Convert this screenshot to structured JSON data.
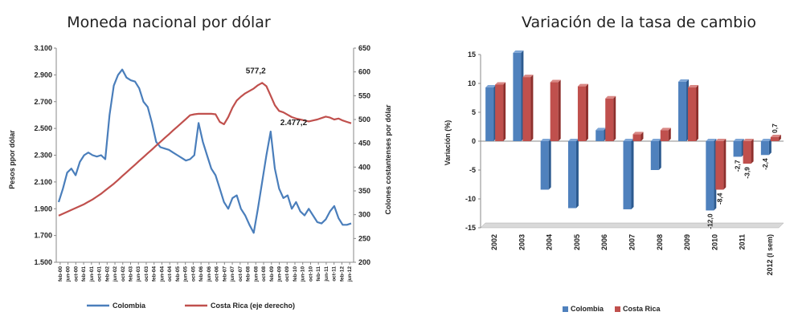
{
  "chart_data": [
    {
      "type": "line",
      "title": "Moneda nacional por dólar",
      "ylabel": "Pesos ppor dólar",
      "y2label": "Colones costantenses por dólar",
      "ylim": [
        1500,
        3100
      ],
      "y2lim": [
        200,
        650
      ],
      "yticks": [
        "1.500",
        "1.700",
        "1.900",
        "2.100",
        "2.300",
        "2.500",
        "2.700",
        "2.900",
        "3.100"
      ],
      "y2ticks": [
        "200",
        "250",
        "300",
        "350",
        "400",
        "450",
        "500",
        "550",
        "600",
        "650"
      ],
      "xticks": [
        "feb-00",
        "jun-00",
        "oct-00",
        "feb-01",
        "jun-01",
        "oct-01",
        "feb-02",
        "jun-02",
        "oct-02",
        "feb-03",
        "jun-03",
        "oct-03",
        "feb-04",
        "jun-04",
        "oct-04",
        "feb-05",
        "jun-05",
        "oct-05",
        "feb-06",
        "jun-06",
        "oct-06",
        "feb-07",
        "jun-07",
        "oct-07",
        "feb-08",
        "jun-08",
        "oct-08",
        "feb-09",
        "jun-09",
        "oct-09",
        "feb-10",
        "jun-10",
        "oct-10",
        "feb-11",
        "jun-11",
        "oct-11",
        "feb-12",
        "jun-12"
      ],
      "legend_position": "bottom",
      "series": [
        {
          "name": "Colombia",
          "axis": "left",
          "color": "#4a7ebb",
          "values": [
            1950,
            2050,
            2170,
            2200,
            2150,
            2250,
            2300,
            2320,
            2300,
            2290,
            2300,
            2270,
            2600,
            2820,
            2900,
            2940,
            2880,
            2860,
            2850,
            2800,
            2700,
            2660,
            2540,
            2400,
            2360,
            2350,
            2340,
            2320,
            2300,
            2280,
            2260,
            2270,
            2300,
            2540,
            2400,
            2300,
            2200,
            2150,
            2050,
            1950,
            1900,
            1980,
            2000,
            1900,
            1850,
            1780,
            1720,
            1900,
            2100,
            2300,
            2477,
            2200,
            2050,
            1980,
            2000,
            1900,
            1950,
            1880,
            1850,
            1900,
            1850,
            1800,
            1790,
            1820,
            1880,
            1920,
            1830,
            1780,
            1780,
            1790
          ]
        },
        {
          "name": "Costa Rica (eje derecho)",
          "axis": "right",
          "color": "#c0504d",
          "values": [
            298,
            302,
            306,
            310,
            314,
            318,
            322,
            327,
            332,
            338,
            344,
            351,
            358,
            365,
            373,
            381,
            389,
            397,
            405,
            413,
            421,
            429,
            437,
            445,
            453,
            461,
            469,
            477,
            485,
            493,
            501,
            509,
            511,
            512,
            512,
            512,
            512,
            511,
            495,
            490,
            505,
            525,
            540,
            548,
            555,
            560,
            565,
            572,
            577,
            570,
            550,
            530,
            518,
            515,
            510,
            505,
            502,
            500,
            498,
            496,
            498,
            500,
            503,
            506,
            504,
            500,
            502,
            498,
            495,
            492
          ]
        }
      ],
      "annotations": [
        {
          "text": "577,2",
          "series": "Costa Rica (eje derecho)"
        },
        {
          "text": "2.477,2",
          "series": "Colombia"
        }
      ]
    },
    {
      "type": "bar",
      "title": "Variación de la tasa de cambio",
      "ylabel": "Variación (%)",
      "ylim": [
        -15,
        15
      ],
      "yticks": [
        "-15",
        "-10",
        "-5",
        "0",
        "5",
        "10",
        "15"
      ],
      "categories": [
        "2002",
        "2003",
        "2004",
        "2005",
        "2006",
        "2007",
        "2008",
        "2009",
        "2010",
        "2011",
        "2012 (I sem)"
      ],
      "legend_position": "bottom",
      "series": [
        {
          "name": "Colombia",
          "color": "#4f81bd",
          "values": [
            9.3,
            15.3,
            -8.4,
            -11.6,
            1.9,
            -11.8,
            -5.0,
            10.3,
            -12.0,
            -2.7,
            -2.4
          ]
        },
        {
          "name": "Costa Rica",
          "color": "#c0504d",
          "values": [
            9.8,
            11.1,
            10.2,
            9.5,
            7.4,
            1.2,
            1.9,
            9.3,
            -8.4,
            -3.9,
            0.7
          ]
        }
      ],
      "data_labels": [
        {
          "category": "2010",
          "series": "Colombia",
          "text": "-12,0"
        },
        {
          "category": "2010",
          "series": "Costa Rica",
          "text": "-8,4"
        },
        {
          "category": "2011",
          "series": "Colombia",
          "text": "-2,7"
        },
        {
          "category": "2011",
          "series": "Costa Rica",
          "text": "-3,9"
        },
        {
          "category": "2012 (I sem)",
          "series": "Colombia",
          "text": "-2,4"
        },
        {
          "category": "2012 (I sem)",
          "series": "Costa Rica",
          "text": "0,7"
        }
      ]
    }
  ]
}
